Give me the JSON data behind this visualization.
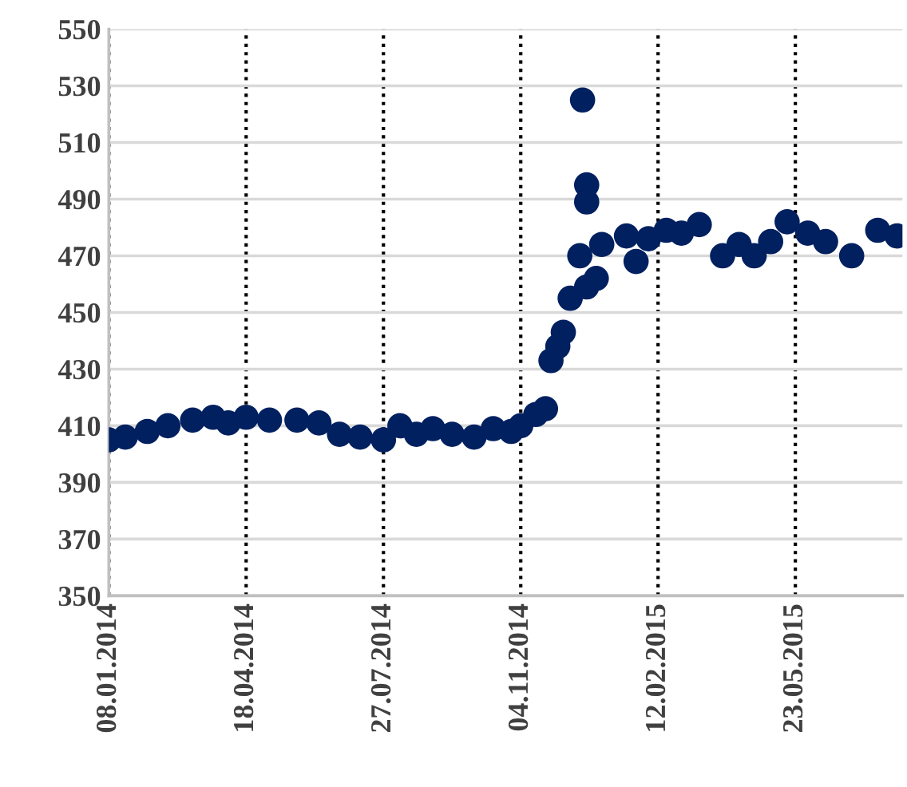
{
  "chart_data": {
    "type": "scatter",
    "x": [
      "2014-01-08",
      "2014-01-20",
      "2014-02-05",
      "2014-02-20",
      "2014-03-10",
      "2014-03-25",
      "2014-04-05",
      "2014-04-18",
      "2014-05-05",
      "2014-05-25",
      "2014-06-10",
      "2014-06-25",
      "2014-07-10",
      "2014-07-27",
      "2014-08-08",
      "2014-08-20",
      "2014-09-01",
      "2014-09-15",
      "2014-10-01",
      "2014-10-15",
      "2014-10-28",
      "2014-11-04",
      "2014-11-15",
      "2014-11-22",
      "2014-11-26",
      "2014-12-01",
      "2014-12-05",
      "2014-12-10",
      "2014-12-17",
      "2014-12-22",
      "2014-12-19",
      "2014-12-22",
      "2014-12-22",
      "2014-12-29",
      "2015-01-02",
      "2015-01-20",
      "2015-01-27",
      "2015-02-05",
      "2015-02-18",
      "2015-03-01",
      "2015-03-14",
      "2015-03-31",
      "2015-04-12",
      "2015-04-23",
      "2015-05-05",
      "2015-05-17",
      "2015-06-01",
      "2015-06-14",
      "2015-07-03",
      "2015-07-22",
      "2015-08-05"
    ],
    "series": [
      {
        "color": "#002060",
        "values": [
          405,
          406,
          408,
          410,
          412,
          413,
          411,
          413,
          412,
          412,
          411,
          407,
          406,
          405,
          410,
          407,
          409,
          407,
          406,
          409,
          408,
          410,
          414,
          416,
          433,
          438,
          443,
          455,
          470,
          459,
          525,
          495,
          489,
          462,
          474,
          477,
          468,
          476,
          479,
          478,
          481,
          470,
          474,
          470,
          475,
          482,
          478,
          475,
          470,
          479,
          477
        ]
      }
    ],
    "xlim": [
      "2014-01-08",
      "2015-08-09"
    ],
    "xticks": [
      {
        "value": "2014-01-08",
        "label": "08.01.2014"
      },
      {
        "value": "2014-04-18",
        "label": "18.04.2014"
      },
      {
        "value": "2014-07-27",
        "label": "27.07.2014"
      },
      {
        "value": "2014-11-04",
        "label": "04.11.2014"
      },
      {
        "value": "2015-02-12",
        "label": "12.02.2015"
      },
      {
        "value": "2015-05-23",
        "label": "23.05.2015"
      }
    ],
    "ylim": [
      350,
      550
    ],
    "yticks": [
      350,
      370,
      390,
      410,
      430,
      450,
      470,
      490,
      510,
      530,
      550
    ],
    "grid": true,
    "marker": "circle"
  }
}
